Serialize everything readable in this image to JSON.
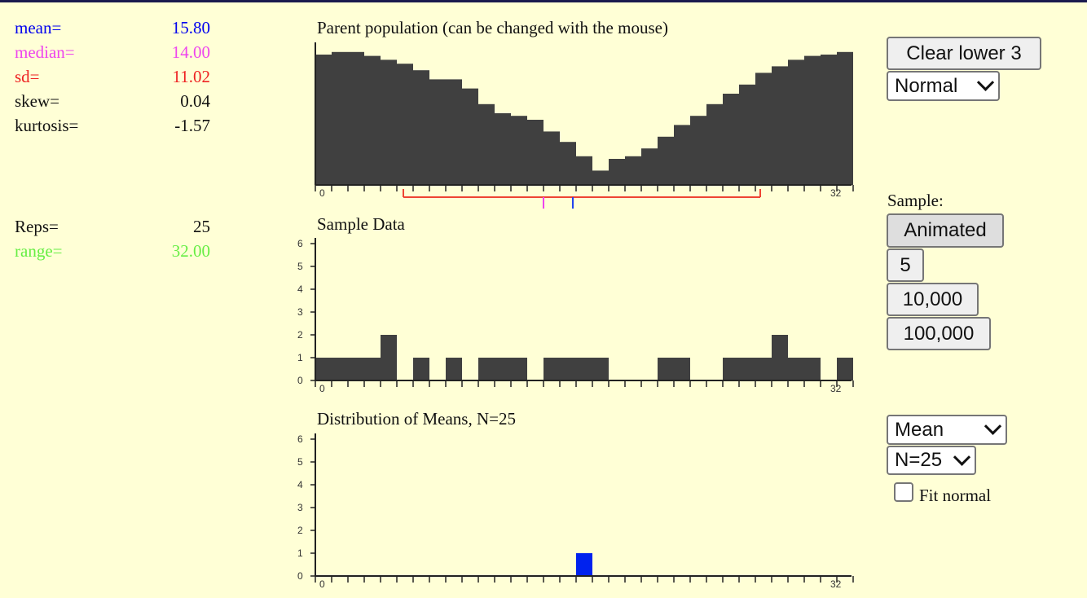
{
  "stats": [
    {
      "label": "mean=",
      "value": "15.80",
      "color": "#0000ee"
    },
    {
      "label": "median=",
      "value": "14.00",
      "color": "#ee44ee"
    },
    {
      "label": "sd=",
      "value": "11.02",
      "color": "#ee2222"
    },
    {
      "label": "skew=",
      "value": "0.04",
      "color": "#111111"
    },
    {
      "label": "kurtosis=",
      "value": "-1.57",
      "color": "#111111"
    }
  ],
  "stats2": [
    {
      "label": "Reps=",
      "value": "25",
      "color": "#111111"
    },
    {
      "label": "range=",
      "value": "32.00",
      "color": "#66ee44"
    }
  ],
  "titles": {
    "parent": "Parent population (can be changed with the mouse)",
    "sample": "Sample Data",
    "means": "Distribution of Means, N=25"
  },
  "controls": {
    "clear_label": "Clear lower 3",
    "dist_select": "Normal",
    "sample_label": "Sample:",
    "animated": "Animated",
    "five": "5",
    "ten_k": "10,000",
    "hundred_k": "100,000",
    "stat_select": "Mean",
    "n_select": "N=25",
    "fit_normal": "Fit normal"
  },
  "colors": {
    "bar": "#404040",
    "mean_bar": "#0022ee",
    "axis": "#222222",
    "sd_bracket": "#ee4433",
    "median_mark": "#ee44ee",
    "mean_mark": "#2244ee"
  },
  "chart_data": [
    {
      "type": "bar",
      "title": "Parent population (can be changed with the mouse)",
      "x_range": [
        0,
        32
      ],
      "x_tick_labels": [
        "0",
        "32"
      ],
      "values": [
        1.0,
        1.02,
        1.02,
        0.99,
        0.96,
        0.93,
        0.88,
        0.81,
        0.81,
        0.74,
        0.62,
        0.55,
        0.53,
        0.5,
        0.41,
        0.33,
        0.22,
        0.11,
        0.2,
        0.22,
        0.28,
        0.37,
        0.46,
        0.53,
        0.62,
        0.7,
        0.77,
        0.86,
        0.91,
        0.96,
        0.99,
        1.0,
        1.02
      ],
      "summary_marks": {
        "mean": 15.8,
        "median": 14.0,
        "sd_low": 5.4,
        "sd_high": 27.3
      }
    },
    {
      "type": "bar",
      "title": "Sample Data",
      "x_range": [
        0,
        32
      ],
      "ylim": [
        0,
        6
      ],
      "y_ticks": [
        0,
        1,
        2,
        3,
        4,
        5,
        6
      ],
      "x_tick_labels": [
        "0",
        "32"
      ],
      "values": [
        1,
        1,
        1,
        1,
        2,
        0,
        1,
        0,
        1,
        0,
        1,
        1,
        1,
        0,
        1,
        1,
        1,
        1,
        0,
        0,
        0,
        1,
        1,
        0,
        0,
        1,
        1,
        1,
        2,
        1,
        1,
        0,
        1
      ]
    },
    {
      "type": "bar",
      "title": "Distribution of Means, N=25",
      "x_range": [
        0,
        32
      ],
      "ylim": [
        0,
        6
      ],
      "y_ticks": [
        0,
        1,
        2,
        3,
        4,
        5,
        6
      ],
      "x_tick_labels": [
        "0",
        "32"
      ],
      "values": [
        0,
        0,
        0,
        0,
        0,
        0,
        0,
        0,
        0,
        0,
        0,
        0,
        0,
        0,
        0,
        0,
        1,
        0,
        0,
        0,
        0,
        0,
        0,
        0,
        0,
        0,
        0,
        0,
        0,
        0,
        0,
        0,
        0
      ]
    }
  ]
}
